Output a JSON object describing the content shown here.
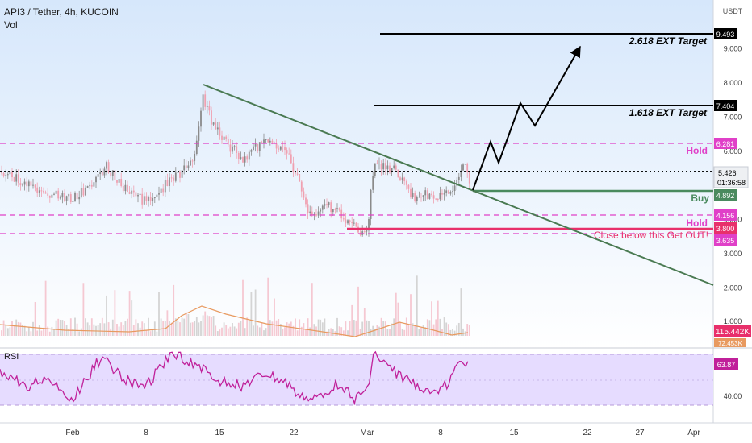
{
  "header": {
    "symbol_line": "API3 / Tether, 4h, KUCOIN",
    "volume_label": "Vol",
    "rsi_label": "RSI"
  },
  "axis": {
    "currency": "USDT",
    "price_ticks": [
      {
        "value": 2.0,
        "label": "2.000"
      },
      {
        "value": 3.0,
        "label": "3.000"
      },
      {
        "value": 4.0,
        "label": "4.000"
      },
      {
        "value": 5.0,
        "label": "5.000"
      },
      {
        "value": 6.0,
        "label": "6.000"
      },
      {
        "value": 7.0,
        "label": "7.000"
      },
      {
        "value": 8.0,
        "label": "8.000"
      },
      {
        "value": 9.0,
        "label": "9.000"
      }
    ],
    "volume_tick": "1.000",
    "rsi_tick": "40.00",
    "date_ticks": [
      "Feb",
      "8",
      "15",
      "22",
      "Mar",
      "8",
      "15",
      "22",
      "27",
      "Apr"
    ]
  },
  "badges": {
    "target_2618": "9.493",
    "target_1618": "7.404",
    "hold_upper": "6.281",
    "current_price": "5.426",
    "countdown": "01:36:58",
    "buy": "4.892",
    "hold_lower": "4.156",
    "stop": "3.800",
    "support": "3.635",
    "volume": "115.442K",
    "volume_ma": "72.453K",
    "rsi": "63.87"
  },
  "annotations": {
    "target_2618": "2.618 EXT Target",
    "target_1618": "1.618 EXT Target",
    "hold_upper": "Hold",
    "buy": "Buy",
    "hold_lower": "Hold",
    "stop": "Close below this Get OUT!"
  },
  "colors": {
    "hold_line": "#e040c8",
    "buy_line": "#4a8a5e",
    "stop_line": "#e8306b",
    "trendline": "#4a7a52",
    "candle_up": "#8a8a8a",
    "candle_down": "#f0a0b0",
    "rsi_line": "#c0209a",
    "rsi_fill": "#e6dcff",
    "vol_ma": "#e89a60",
    "background_top": "#d8e8fb"
  }
}
